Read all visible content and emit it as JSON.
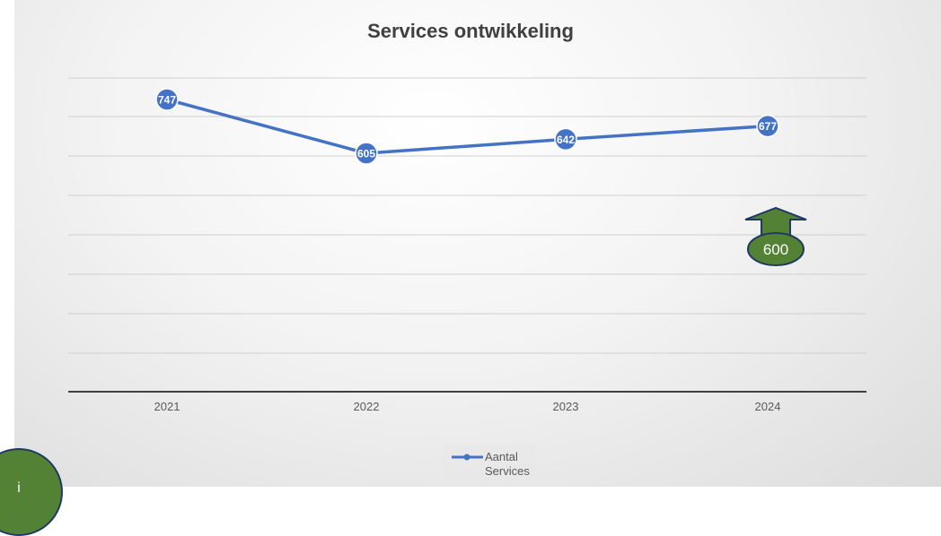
{
  "chart_data": {
    "type": "line",
    "title": "Services ontwikkeling",
    "categories": [
      "2021",
      "2022",
      "2023",
      "2024"
    ],
    "series": [
      {
        "name": "Aantal Services",
        "values": [
          747,
          605,
          642,
          677
        ],
        "color": "#4472c4"
      }
    ],
    "data_labels": [
      "747",
      "605",
      "642",
      "677"
    ],
    "legend": {
      "line1": "Aantal",
      "line2": "Services",
      "position": "bottom"
    },
    "grid": true,
    "y_axis_labels_visible": false
  },
  "annotation": {
    "label": "600",
    "arrow_direction": "up",
    "color": "#548235",
    "outline_color": "#1f3864"
  },
  "corner_badge": {
    "text": "i",
    "color": "#548235"
  }
}
